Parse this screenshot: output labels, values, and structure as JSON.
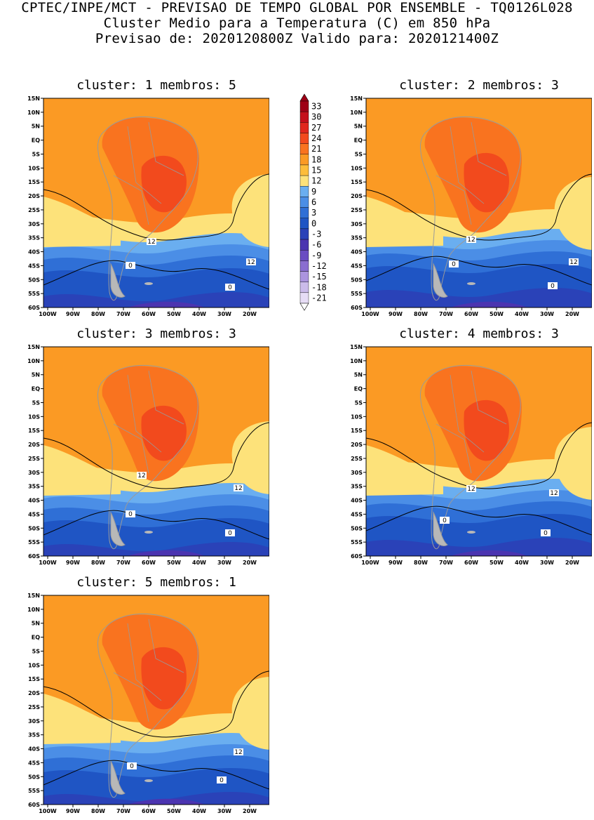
{
  "header": {
    "line1": "CPTEC/INPE/MCT - PREVISAO DE TEMPO GLOBAL POR ENSEMBLE - TQ0126L028",
    "line2": "Cluster Medio para a Temperatura (C) em 850 hPa",
    "line3": "Previsao de: 2020120800Z   Valido para: 2020121400Z"
  },
  "axes": {
    "lat_labels": [
      "15N",
      "10N",
      "5N",
      "EQ",
      "5S",
      "10S",
      "15S",
      "20S",
      "25S",
      "30S",
      "35S",
      "40S",
      "45S",
      "50S",
      "55S",
      "60S"
    ],
    "lon_labels": [
      "100W",
      "90W",
      "80W",
      "70W",
      "60W",
      "50W",
      "40W",
      "30W",
      "20W"
    ]
  },
  "colorbar": {
    "labels": [
      "33",
      "30",
      "27",
      "24",
      "21",
      "18",
      "15",
      "12",
      "9",
      "6",
      "3",
      "0",
      "-3",
      "-6",
      "-9",
      "-12",
      "-15",
      "-18",
      "-21"
    ],
    "colors": [
      "#9e0016",
      "#c40f1b",
      "#e0271d",
      "#f24a1d",
      "#f9731f",
      "#fb9a24",
      "#fdbd3a",
      "#fde27a",
      "#6aaef0",
      "#4b8ee6",
      "#2f6fd6",
      "#1f55c4",
      "#2a42b8",
      "#4b34b0",
      "#6a4cc2",
      "#8a6ed0",
      "#ab94de",
      "#cbbbea",
      "#e6dcf5"
    ]
  },
  "contours": {
    "warm_label": "12",
    "cold_label": "0"
  },
  "panels": [
    {
      "title": "cluster: 1   membros: 5"
    },
    {
      "title": "cluster: 2   membros: 3"
    },
    {
      "title": "cluster: 3   membros: 3"
    },
    {
      "title": "cluster: 4   membros: 3"
    },
    {
      "title": "cluster: 5   membros: 1"
    }
  ]
}
